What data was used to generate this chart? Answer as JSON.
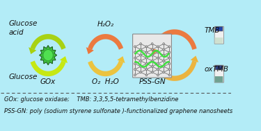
{
  "bg_color": "#b3ecf7",
  "text_labels": {
    "glucose_acid": "Glucose\nacid",
    "glucose": "Glucose",
    "gox_label": "GOx",
    "h2o2": "H₂O₂",
    "o2_h2o": "O₂  H₂O",
    "pss_gn": "PSS-GN",
    "tmb": "TMB",
    "oxtmb": "oxTMB"
  },
  "footnote1": "GOx: glucose oxidase;    TMB: 3,3,5,5-tetramethylbenzidine",
  "footnote2": "PSS-GN: poly (sodium styrene sulfonate )-functionalized graphene nanosheets",
  "fig_width": 3.75,
  "fig_height": 1.89
}
